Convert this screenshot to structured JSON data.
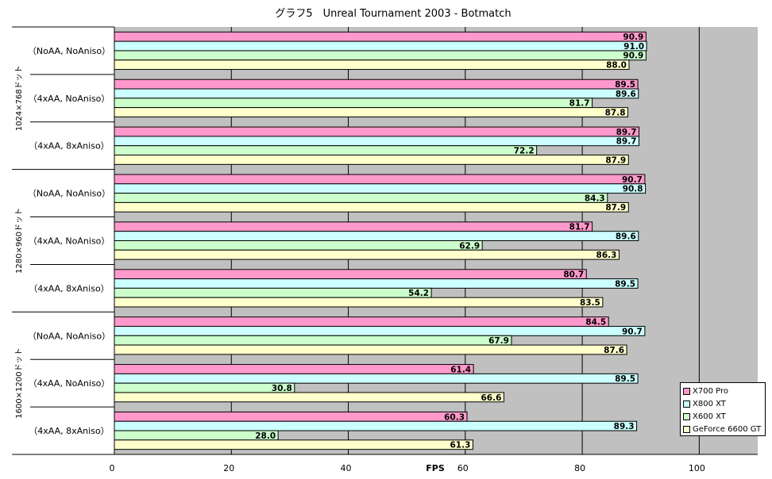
{
  "chart_data": {
    "type": "bar",
    "orientation": "horizontal",
    "title": "グラフ5　Unreal Tournament 2003 - Botmatch",
    "xlabel": "FPS",
    "xlim": [
      0,
      110
    ],
    "x_ticks": [
      0,
      20,
      40,
      60,
      80,
      100
    ],
    "grid": true,
    "legend_position": "bottom-right",
    "plot_background": "#c0c0c0",
    "groups": [
      {
        "label": "1024×768ドット",
        "categories": [
          "（NoAA, NoAniso）",
          "（4xAA, NoAniso）",
          "（4xAA, 8xAniso）"
        ]
      },
      {
        "label": "1280×960ドット",
        "categories": [
          "（NoAA, NoAniso）",
          "（4xAA, NoAniso）",
          "（4xAA, 8xAniso）"
        ]
      },
      {
        "label": "1600×1200ドット",
        "categories": [
          "（NoAA, NoAniso）",
          "（4xAA, NoAniso）",
          "（4xAA, 8xAniso）"
        ]
      }
    ],
    "series": [
      {
        "name": "X700 Pro",
        "color": "#ff99cc",
        "values": [
          90.9,
          89.5,
          89.7,
          90.7,
          81.7,
          80.7,
          84.5,
          61.4,
          60.3
        ]
      },
      {
        "name": "X800 XT",
        "color": "#ccffff",
        "values": [
          91.0,
          89.6,
          89.7,
          90.8,
          89.6,
          89.5,
          90.7,
          89.5,
          89.3
        ]
      },
      {
        "name": "X600 XT",
        "color": "#ccffcc",
        "values": [
          90.9,
          81.7,
          72.2,
          84.3,
          62.9,
          54.2,
          67.9,
          30.8,
          28.0
        ]
      },
      {
        "name": "GeForce 6600 GT",
        "color": "#ffffcc",
        "values": [
          88.0,
          87.8,
          87.9,
          87.9,
          86.3,
          83.5,
          87.6,
          66.6,
          61.3
        ]
      }
    ]
  }
}
